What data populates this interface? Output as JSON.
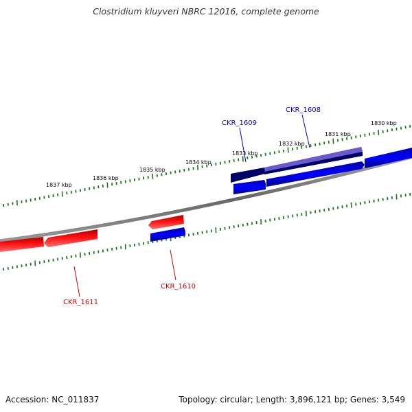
{
  "header": {
    "title": "Clostridium kluyveri NBRC 12016, complete genome"
  },
  "footer": {
    "accession": "Accession: NC_011837",
    "summary": "Topology: circular; Length: 3,896,121 bp; Genes: 3,549"
  },
  "ruler": {
    "labels": [
      "1830 kbp",
      "1831 kbp",
      "1832 kbp",
      "1833 kbp",
      "1834 kbp",
      "1835 kbp",
      "1836 kbp",
      "1837 kbp"
    ]
  },
  "genes": [
    {
      "id": "CKR_1608",
      "label": "CKR_1608",
      "strand": "forward",
      "label_color": "#0000cc"
    },
    {
      "id": "CKR_1609",
      "label": "CKR_1609",
      "strand": "forward",
      "label_color": "#0000cc"
    },
    {
      "id": "CKR_1610",
      "label": "CKR_1610",
      "strand": "reverse",
      "label_color": "#cc0000"
    },
    {
      "id": "CKR_1611",
      "label": "CKR_1611",
      "strand": "reverse",
      "label_color": "#cc0000"
    }
  ],
  "colors": {
    "forward": "#0000ee",
    "reverse": "#ee0000",
    "selected_dark": "#000066",
    "selected_light": "#6a5acd",
    "backbone": "#888888",
    "ticks": "#1a7a1a"
  }
}
